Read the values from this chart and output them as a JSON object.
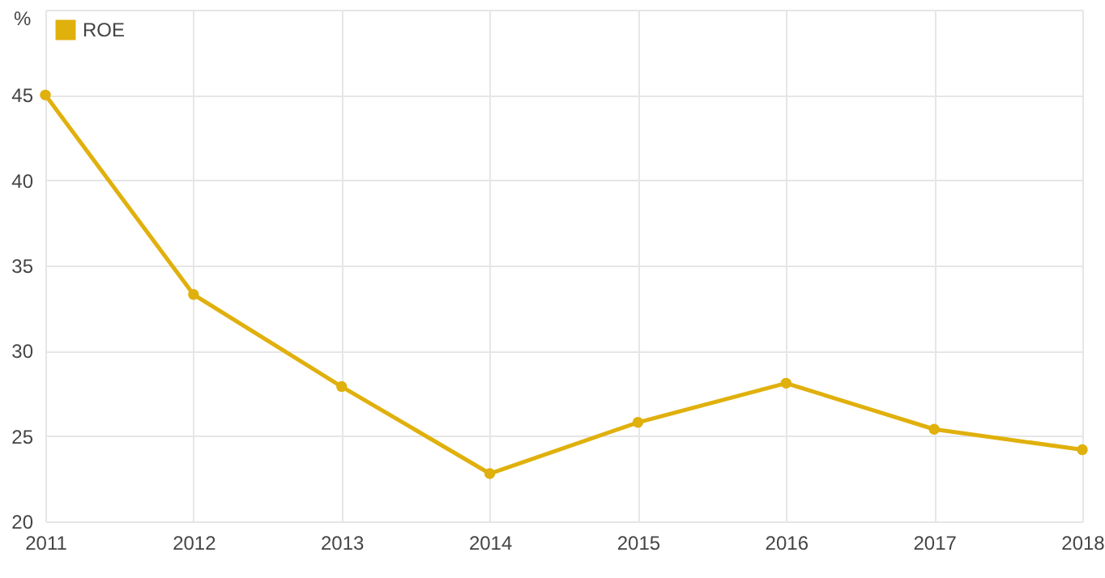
{
  "chart_data": {
    "type": "line",
    "ylabel": "%",
    "x": [
      2011,
      2012,
      2013,
      2014,
      2015,
      2016,
      2017,
      2018
    ],
    "series": [
      {
        "name": "ROE",
        "color": "#e0b00c",
        "values": [
          45,
          33.3,
          27.9,
          22.8,
          25.8,
          28.1,
          25.4,
          24.2
        ]
      }
    ],
    "xlim": [
      2011,
      2018
    ],
    "xticks": [
      2011,
      2012,
      2013,
      2014,
      2015,
      2016,
      2017,
      2018
    ],
    "ylim": [
      20,
      50
    ],
    "yticks": [
      20,
      25,
      30,
      35,
      40,
      45,
      {
        "value": 50,
        "label": null
      }
    ],
    "grid": true,
    "legend": "top left",
    "marker": "circle",
    "line_style": "solid"
  }
}
